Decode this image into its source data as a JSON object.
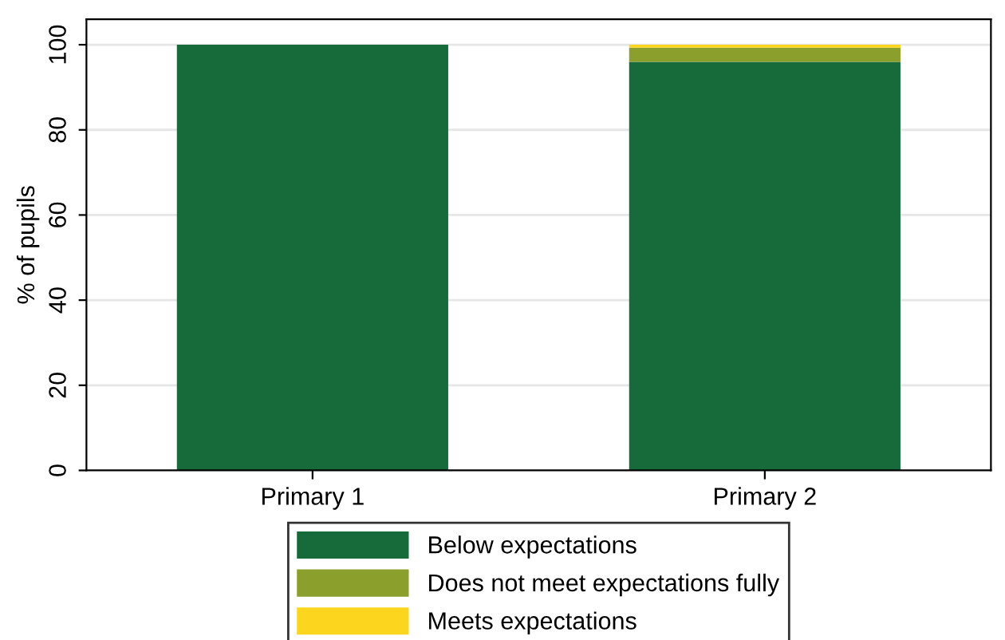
{
  "chart_data": {
    "type": "bar",
    "stacked": true,
    "ylabel": "% of pupils",
    "categories": [
      "Primary 1",
      "Primary 2"
    ],
    "series": [
      {
        "name": "Below expectations",
        "color": "#176b3a",
        "values": [
          100,
          96
        ]
      },
      {
        "name": "Does not meet expectations fully",
        "color": "#8b9f2c",
        "values": [
          0,
          3.3
        ]
      },
      {
        "name": "Meets expectations",
        "color": "#fcd61e",
        "values": [
          0,
          0.7
        ]
      }
    ],
    "ylim": [
      0,
      106
    ],
    "yticks": [
      0,
      20,
      40,
      60,
      80,
      100
    ],
    "grid": "y",
    "legend": "bottom"
  }
}
